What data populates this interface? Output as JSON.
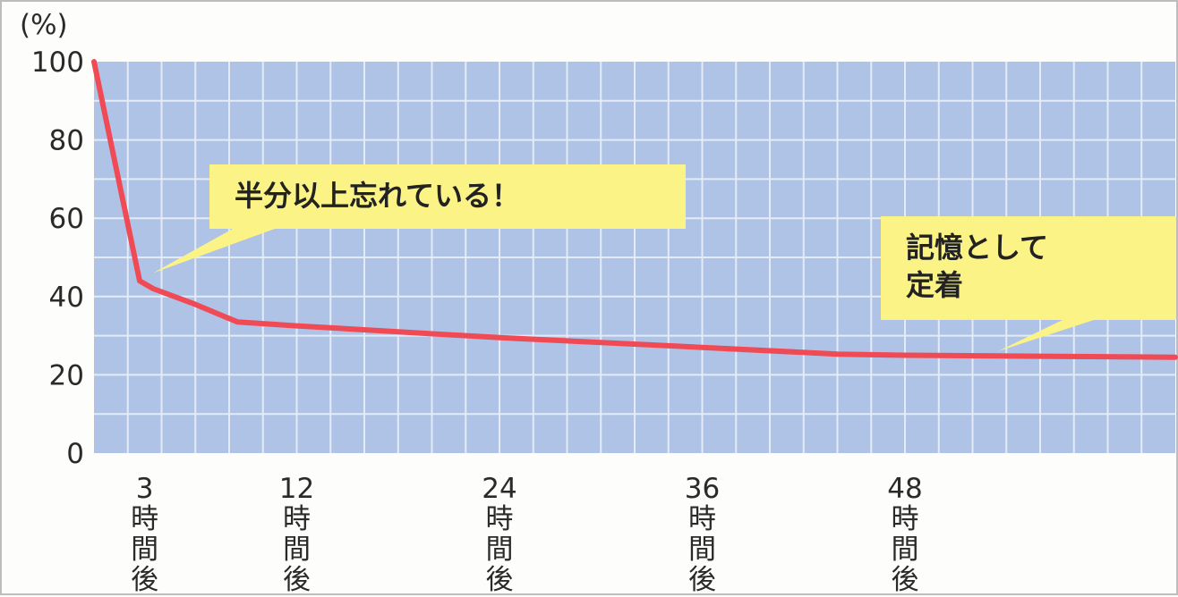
{
  "chart_data": {
    "type": "line",
    "y_unit_label": "(%)",
    "ylim": [
      0,
      100
    ],
    "y_ticks": [
      0,
      20,
      40,
      60,
      80,
      100
    ],
    "xlim": [
      0,
      64
    ],
    "x_tick_labels": [
      {
        "x": 3,
        "lines": [
          "3",
          "時",
          "間",
          "後"
        ]
      },
      {
        "x": 12,
        "lines": [
          "12",
          "時",
          "間",
          "後"
        ]
      },
      {
        "x": 24,
        "lines": [
          "24",
          "時",
          "間",
          "後"
        ]
      },
      {
        "x": 36,
        "lines": [
          "36",
          "時",
          "間",
          "後"
        ]
      },
      {
        "x": 48,
        "lines": [
          "48",
          "時",
          "間",
          "後"
        ]
      }
    ],
    "grid": true,
    "series": [
      {
        "color": "#f04a55",
        "points": [
          {
            "x": 0,
            "y": 100
          },
          {
            "x": 2.7,
            "y": 44
          },
          {
            "x": 3.5,
            "y": 42
          },
          {
            "x": 6,
            "y": 38
          },
          {
            "x": 8.5,
            "y": 33.5
          },
          {
            "x": 12,
            "y": 32.5
          },
          {
            "x": 24,
            "y": 29.5
          },
          {
            "x": 36,
            "y": 27
          },
          {
            "x": 44,
            "y": 25.3
          },
          {
            "x": 48,
            "y": 25
          },
          {
            "x": 64,
            "y": 24.5
          }
        ]
      }
    ],
    "annotations": [
      {
        "lines": [
          "半分以上忘れている！"
        ],
        "pointer_x": 3.5,
        "pointer_y": 46
      },
      {
        "lines": [
          "記憶として",
          "定着"
        ],
        "pointer_x": 53.5,
        "pointer_y": 26
      }
    ]
  },
  "colors": {
    "plot_background": "#aec3e6",
    "gridline": "#e4ebf7",
    "callout_fill": "#fbf386"
  }
}
